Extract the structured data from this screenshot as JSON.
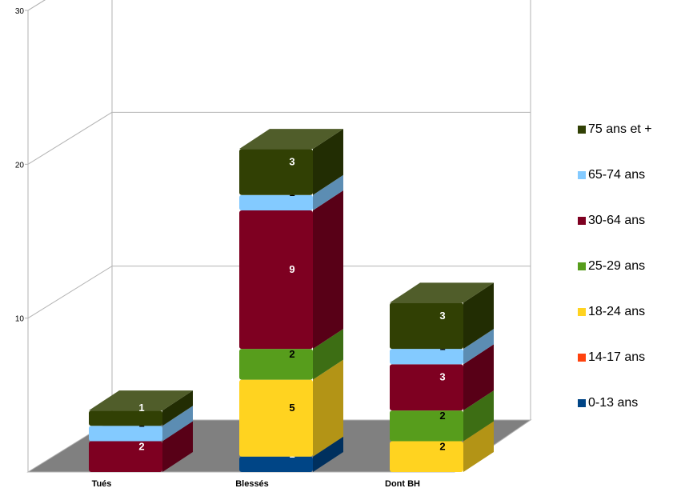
{
  "chart_data": {
    "type": "bar",
    "stacked": true,
    "three_d": true,
    "categories": [
      "Tués",
      "Blessés",
      "Dont BH"
    ],
    "y_ticks": [
      "30",
      "20",
      "10"
    ],
    "ylim": [
      0,
      30
    ],
    "grid": true,
    "legend_position": "right",
    "series": [
      {
        "name": "0-13 ans",
        "color": "#004586",
        "values": [
          0,
          1,
          0
        ]
      },
      {
        "name": "14-17 ans",
        "color": "#ff420e",
        "values": [
          0,
          0,
          0
        ]
      },
      {
        "name": "18-24 ans",
        "color": "#ffd320",
        "values": [
          0,
          5,
          2
        ]
      },
      {
        "name": "25-29 ans",
        "color": "#579d1c",
        "values": [
          0,
          2,
          2
        ]
      },
      {
        "name": "30-64 ans",
        "color": "#7e0021",
        "values": [
          2,
          9,
          3
        ]
      },
      {
        "name": "65-74 ans",
        "color": "#83caff",
        "values": [
          1,
          1,
          1
        ]
      },
      {
        "name": "75 ans et +",
        "color": "#314004",
        "values": [
          1,
          3,
          3
        ]
      }
    ],
    "data_labels": [
      [
        "",
        "1",
        ""
      ],
      [
        "",
        "",
        ""
      ],
      [
        "",
        "5",
        "2"
      ],
      [
        "",
        "2",
        "2"
      ],
      [
        "2",
        "9",
        "3"
      ],
      [
        "1",
        "1",
        "1"
      ],
      [
        "1",
        "3",
        "3"
      ]
    ],
    "legend_order": [
      6,
      5,
      4,
      3,
      2,
      1,
      0
    ]
  }
}
